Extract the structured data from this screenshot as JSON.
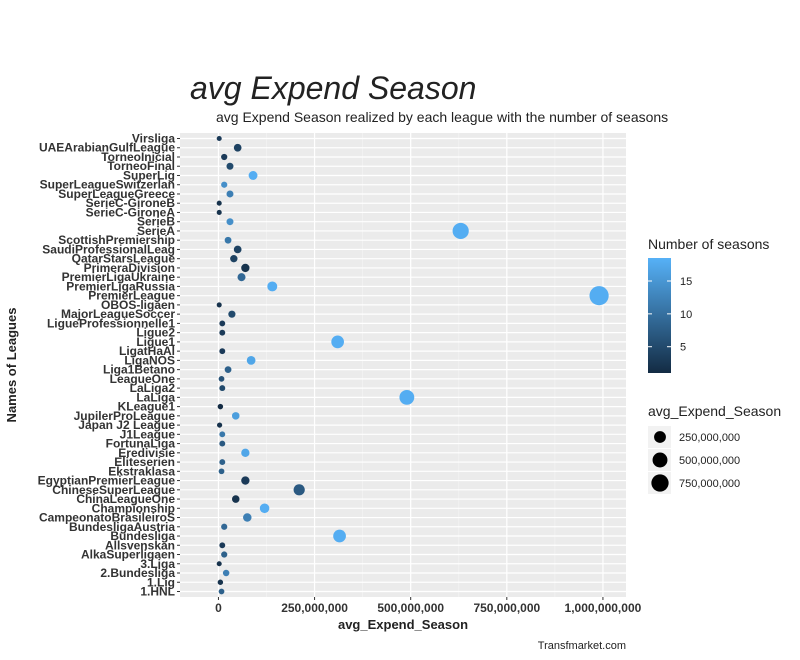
{
  "chart_data": {
    "type": "scatter",
    "title": "avg Expend Season",
    "subtitle": "avg Expend Season realized by each league with the number of seasons",
    "xlabel": "avg_Expend_Season",
    "ylabel": "Names of Leagues",
    "caption": "Transfmarket.com",
    "xlim": [
      -100000000,
      1060000000
    ],
    "x_ticks": [
      0,
      250000000,
      500000000,
      750000000,
      1000000000
    ],
    "x_tick_labels": [
      "0",
      "250,000,000",
      "500,000,000",
      "750,000,000",
      "1,000,000,000"
    ],
    "categories": [
      "Virsliga",
      "UAEArabianGulfLeague",
      "TorneoInicial",
      "TorneoFinal",
      "SuperLig",
      "SuperLeagueSwitzerlan",
      "SuperLeagueGreece",
      "SerieC-GironeB",
      "SerieC-GironeA",
      "SerieB",
      "SerieA",
      "ScottishPremiership",
      "SaudiProfessionalLeag",
      "QatarStarsLeague",
      "PrimeraDivision",
      "PremierLigaUkraine",
      "PremierLigaRussia",
      "PremierLeague",
      "OBOS-ligaen",
      "MajorLeagueSoccer",
      "LigueProfessionnelle1",
      "Ligue2",
      "Ligue1",
      "LigatHaAl",
      "LigaNOS",
      "Liga1Betano",
      "LeagueOne",
      "LaLiga2",
      "LaLiga",
      "KLeague1",
      "JupilerProLeague",
      "Japan J2 League",
      "J1League",
      "FortunaLiga",
      "Eredivisie",
      "Eliteserien",
      "Ekstraklasa",
      "EgyptianPremierLeague",
      "ChineseSuperLeague",
      "ChinaLeagueOne",
      "Championship",
      "CampeonatoBrasileiroS",
      "BundesligaAustria",
      "Bundesliga",
      "Allsvenskan",
      "AlkaSuperligaen",
      "3.Liga",
      "2.Bundesliga",
      "1.Lig",
      "1.HNL"
    ],
    "values": [
      2000000,
      50000000,
      15000000,
      30000000,
      90000000,
      15000000,
      30000000,
      2000000,
      2000000,
      30000000,
      630000000,
      25000000,
      50000000,
      40000000,
      70000000,
      60000000,
      140000000,
      990000000,
      2000000,
      35000000,
      10000000,
      10000000,
      310000000,
      10000000,
      85000000,
      25000000,
      8000000,
      10000000,
      490000000,
      5000000,
      45000000,
      3000000,
      10000000,
      10000000,
      70000000,
      10000000,
      8000000,
      70000000,
      210000000,
      45000000,
      120000000,
      75000000,
      15000000,
      315000000,
      10000000,
      15000000,
      2000000,
      20000000,
      5000000,
      8000000
    ],
    "seasons": [
      3,
      4,
      3,
      5,
      18,
      14,
      12,
      2,
      2,
      14,
      18,
      11,
      4,
      4,
      2,
      9,
      18,
      18,
      2,
      5,
      3,
      3,
      18,
      3,
      17,
      8,
      6,
      5,
      18,
      1,
      16,
      2,
      11,
      7,
      17,
      8,
      8,
      3,
      7,
      2,
      18,
      12,
      9,
      18,
      3,
      8,
      2,
      12,
      2,
      8
    ],
    "color_legend": {
      "title": "Number of seasons",
      "ticks": [
        5,
        10,
        15
      ],
      "min": 1,
      "max": 18.5,
      "low_color": "#132b43",
      "high_color": "#56b1f7"
    },
    "size_legend": {
      "title": "avg_Expend_Season",
      "values": [
        250000000,
        500000000,
        750000000
      ],
      "labels": [
        "250,000,000",
        "500,000,000",
        "750,000,000"
      ]
    },
    "panel_background": "#ebebeb",
    "grid": true
  }
}
